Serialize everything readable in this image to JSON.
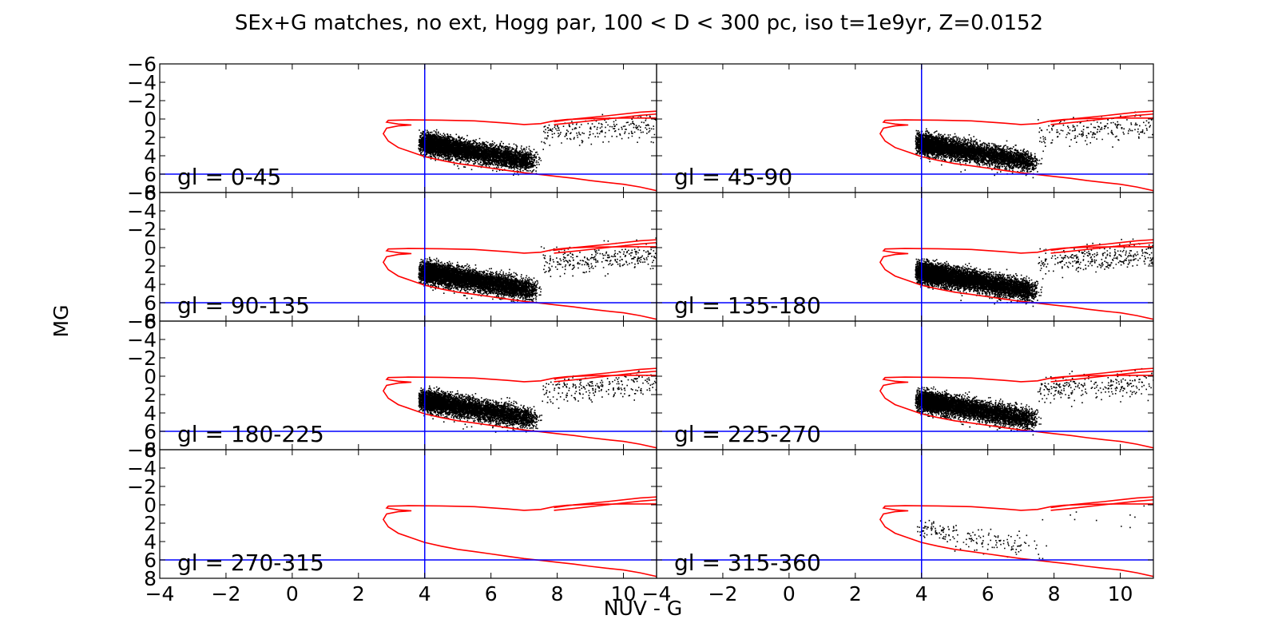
{
  "chart_data": {
    "type": "scatter",
    "title": "SEx+G matches, no ext, Hogg par, 100 < D < 300 pc, iso t=1e9yr, Z=0.0152",
    "xlabel": "NUV - G",
    "ylabel": "MG",
    "xlim": [
      -4,
      11
    ],
    "ylim": [
      8,
      -6
    ],
    "x_ticks": [
      "−4",
      "−2",
      "0",
      "2",
      "4",
      "6",
      "8",
      "10"
    ],
    "y_ticks": [
      "−6",
      "−4",
      "−2",
      "0",
      "2",
      "4",
      "6",
      "8"
    ],
    "y_tick_values": [
      -6,
      -4,
      -2,
      0,
      2,
      4,
      6,
      8
    ],
    "x_tick_values": [
      -4,
      -2,
      0,
      2,
      4,
      6,
      8,
      10
    ],
    "grid": false,
    "reference_lines": {
      "vertical_x": 4,
      "horizontal_y": 6,
      "color": "#0000ff"
    },
    "isochrone": {
      "color": "#ff0000",
      "main_branch": [
        [
          11.2,
          7.9
        ],
        [
          11,
          7.8
        ],
        [
          10.5,
          7.4
        ],
        [
          10,
          7.1
        ],
        [
          9.5,
          6.9
        ],
        [
          9,
          6.7
        ],
        [
          8.5,
          6.45
        ],
        [
          8,
          6.25
        ],
        [
          7.5,
          6.05
        ],
        [
          7,
          5.85
        ],
        [
          6.5,
          5.6
        ],
        [
          6,
          5.35
        ],
        [
          5.5,
          5.1
        ],
        [
          5,
          4.85
        ],
        [
          4.5,
          4.5
        ],
        [
          4,
          4.1
        ],
        [
          3.6,
          3.6
        ],
        [
          3.2,
          3.1
        ],
        [
          2.9,
          2.4
        ],
        [
          2.75,
          1.6
        ],
        [
          2.85,
          1.0
        ],
        [
          3.2,
          0.75
        ],
        [
          3.6,
          0.65
        ],
        [
          3.2,
          0.55
        ],
        [
          2.85,
          0.35
        ],
        [
          2.9,
          0.15
        ],
        [
          3.5,
          0.1
        ],
        [
          4.5,
          0.12
        ],
        [
          5.5,
          0.2
        ],
        [
          6.5,
          0.45
        ],
        [
          7.0,
          0.6
        ],
        [
          7.5,
          0.5
        ],
        [
          7.9,
          0.2
        ],
        [
          8.3,
          0.05
        ],
        [
          9,
          -0.05
        ],
        [
          10,
          -0.1
        ],
        [
          11.2,
          -0.1
        ]
      ],
      "giant_branch": [
        [
          7.9,
          0.6
        ],
        [
          8.5,
          0.4
        ],
        [
          9.5,
          0.0
        ],
        [
          10.5,
          -0.4
        ],
        [
          11.2,
          -0.6
        ],
        [
          11.2,
          -0.9
        ],
        [
          10.5,
          -0.75
        ],
        [
          9.5,
          -0.35
        ],
        [
          8.5,
          0.0
        ],
        [
          7.9,
          0.3
        ]
      ]
    },
    "panels": [
      {
        "label": "gl = 0-45",
        "density": 5500,
        "blue_end": 7.2,
        "has_giants": true,
        "giant_density": 220
      },
      {
        "label": "gl = 45-90",
        "density": 5000,
        "blue_end": 7.3,
        "has_giants": true,
        "giant_density": 200
      },
      {
        "label": "gl = 90-135",
        "density": 6500,
        "blue_end": 7.2,
        "has_giants": true,
        "giant_density": 280
      },
      {
        "label": "gl = 135-180",
        "density": 7000,
        "blue_end": 7.3,
        "has_giants": true,
        "giant_density": 300
      },
      {
        "label": "gl = 180-225",
        "density": 5500,
        "blue_end": 7.2,
        "has_giants": true,
        "giant_density": 240
      },
      {
        "label": "gl = 225-270",
        "density": 5500,
        "blue_end": 7.3,
        "has_giants": true,
        "giant_density": 240
      },
      {
        "label": "gl = 270-315",
        "density": 0,
        "blue_end": 0,
        "has_giants": false,
        "giant_density": 0
      },
      {
        "label": "gl = 315-360",
        "density": 180,
        "blue_end": 7.5,
        "has_giants": true,
        "giant_density": 10
      }
    ],
    "series": [
      {
        "name": "",
        "marker": "point",
        "color": "#000000"
      }
    ]
  }
}
